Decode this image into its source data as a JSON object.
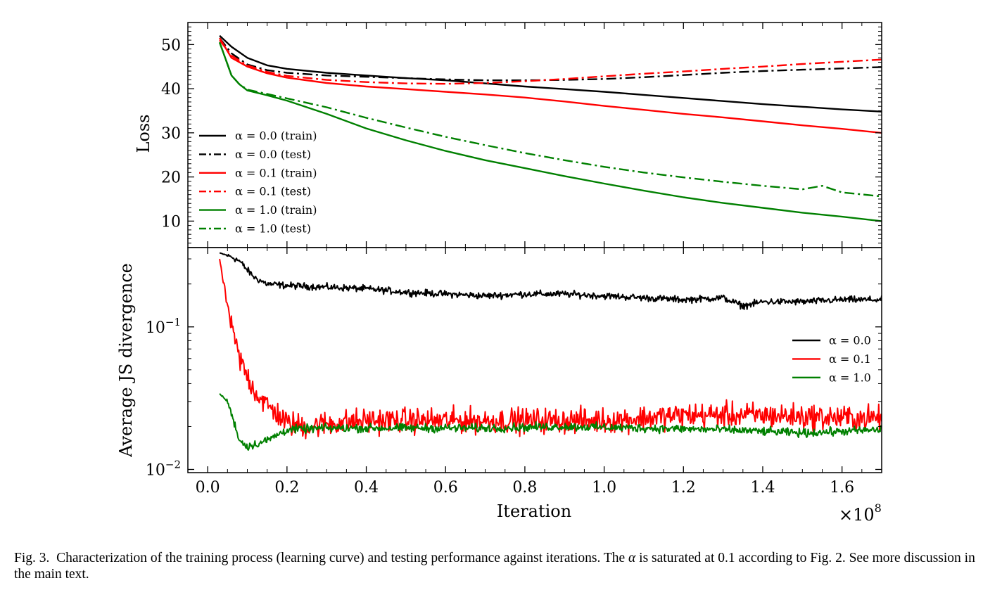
{
  "chart_data": [
    {
      "type": "line",
      "panel": "top",
      "ylabel": "Loss",
      "xlim": [
        -0.05,
        1.7
      ],
      "ylim": [
        4,
        55
      ],
      "yscale": "linear",
      "yticks": [
        10,
        20,
        30,
        40,
        50
      ],
      "ytick_labels": [
        "10",
        "20",
        "30",
        "40",
        "50"
      ],
      "legend_position": "lower-left",
      "series": [
        {
          "name": "α = 0.0 (train)",
          "color": "#000000",
          "style": "solid",
          "x": [
            0.03,
            0.06,
            0.1,
            0.15,
            0.2,
            0.3,
            0.4,
            0.5,
            0.6,
            0.7,
            0.8,
            0.9,
            1.0,
            1.1,
            1.2,
            1.3,
            1.4,
            1.5,
            1.6,
            1.7
          ],
          "y": [
            52,
            49.5,
            47,
            45.3,
            44.5,
            43.6,
            43,
            42.4,
            41.9,
            41.2,
            40.5,
            39.9,
            39.3,
            38.6,
            37.9,
            37.2,
            36.5,
            35.9,
            35.3,
            34.8
          ]
        },
        {
          "name": "α = 0.0 (test)",
          "color": "#000000",
          "style": "dashdot",
          "x": [
            0.03,
            0.06,
            0.1,
            0.15,
            0.2,
            0.3,
            0.4,
            0.5,
            0.6,
            0.7,
            0.8,
            0.9,
            1.0,
            1.1,
            1.2,
            1.3,
            1.4,
            1.5,
            1.6,
            1.7
          ],
          "y": [
            51.5,
            48,
            45.5,
            44.2,
            43.6,
            43,
            42.7,
            42.4,
            42.1,
            41.9,
            41.9,
            42,
            42.2,
            42.6,
            43.1,
            43.6,
            44,
            44.3,
            44.6,
            44.9
          ]
        },
        {
          "name": "α = 0.1 (train)",
          "color": "#ff0000",
          "style": "solid",
          "x": [
            0.03,
            0.06,
            0.1,
            0.15,
            0.2,
            0.3,
            0.4,
            0.5,
            0.6,
            0.7,
            0.8,
            0.9,
            1.0,
            1.1,
            1.2,
            1.3,
            1.4,
            1.5,
            1.6,
            1.7
          ],
          "y": [
            51.5,
            47,
            45,
            43.5,
            42.5,
            41.3,
            40.5,
            39.9,
            39.3,
            38.7,
            38,
            37.1,
            36.1,
            35.2,
            34.3,
            33.5,
            32.6,
            31.7,
            30.9,
            30
          ]
        },
        {
          "name": "α = 0.1 (test)",
          "color": "#ff0000",
          "style": "dashdot",
          "x": [
            0.03,
            0.06,
            0.1,
            0.15,
            0.2,
            0.3,
            0.4,
            0.5,
            0.6,
            0.7,
            0.8,
            0.9,
            1.0,
            1.1,
            1.2,
            1.3,
            1.4,
            1.5,
            1.6,
            1.7
          ],
          "y": [
            51,
            47.5,
            45.3,
            43.8,
            42.9,
            42,
            41.5,
            41.2,
            41.1,
            41.3,
            41.7,
            42.2,
            42.8,
            43.4,
            43.9,
            44.5,
            45,
            45.6,
            46.1,
            46.6
          ]
        },
        {
          "name": "α = 1.0 (train)",
          "color": "#008000",
          "style": "solid",
          "x": [
            0.03,
            0.06,
            0.08,
            0.1,
            0.15,
            0.2,
            0.3,
            0.4,
            0.5,
            0.6,
            0.7,
            0.8,
            0.9,
            1.0,
            1.1,
            1.2,
            1.3,
            1.4,
            1.5,
            1.6,
            1.7
          ],
          "y": [
            50.5,
            43,
            41,
            39.6,
            38.5,
            37.3,
            34.3,
            31,
            28.3,
            25.9,
            23.8,
            22,
            20.2,
            18.5,
            16.9,
            15.4,
            14.1,
            13,
            11.9,
            11,
            10
          ]
        },
        {
          "name": "α = 1.0 (test)",
          "color": "#008000",
          "style": "dashdot",
          "x": [
            0.03,
            0.06,
            0.08,
            0.1,
            0.15,
            0.2,
            0.3,
            0.4,
            0.5,
            0.6,
            0.7,
            0.8,
            0.9,
            1.0,
            1.1,
            1.2,
            1.3,
            1.4,
            1.5,
            1.55,
            1.6,
            1.7
          ],
          "y": [
            50.5,
            43,
            41,
            39.8,
            38.8,
            37.8,
            35.8,
            33.4,
            31.2,
            29.1,
            27.2,
            25.4,
            23.8,
            22.3,
            21,
            19.9,
            18.9,
            18,
            17.2,
            18,
            16.5,
            15.6
          ]
        }
      ]
    },
    {
      "type": "line",
      "panel": "bottom",
      "xlabel": "Iteration",
      "x_multiplier": "×10⁸",
      "x_multiplier_base": "×10",
      "x_multiplier_exp": "8",
      "ylabel": "Average JS divergence",
      "xlim": [
        -0.05,
        1.7
      ],
      "ylim": [
        0.0095,
        0.36
      ],
      "yscale": "log",
      "xticks": [
        0.0,
        0.2,
        0.4,
        0.6,
        0.8,
        1.0,
        1.2,
        1.4,
        1.6
      ],
      "xtick_labels": [
        "0.0",
        "0.2",
        "0.4",
        "0.6",
        "0.8",
        "1.0",
        "1.2",
        "1.4",
        "1.6"
      ],
      "yticks": [
        0.01,
        0.1
      ],
      "ytick_bases": [
        "10",
        "10"
      ],
      "ytick_exps": [
        "−2",
        "−1"
      ],
      "legend_position": "center-right",
      "series": [
        {
          "name": "α = 0.0",
          "color": "#000000",
          "trend_x": [
            0.03,
            0.06,
            0.08,
            0.1,
            0.12,
            0.15,
            0.2,
            0.3,
            0.4,
            0.5,
            0.6,
            0.7,
            0.8,
            0.9,
            1.0,
            1.1,
            1.2,
            1.3,
            1.35,
            1.4,
            1.5,
            1.6,
            1.7
          ],
          "trend_y": [
            0.33,
            0.31,
            0.29,
            0.25,
            0.22,
            0.2,
            0.195,
            0.19,
            0.185,
            0.175,
            0.17,
            0.165,
            0.17,
            0.17,
            0.165,
            0.16,
            0.155,
            0.16,
            0.14,
            0.15,
            0.15,
            0.155,
            0.155
          ],
          "noise_amplitude": 0.08
        },
        {
          "name": "α = 0.1",
          "color": "#ff0000",
          "trend_x": [
            0.03,
            0.04,
            0.06,
            0.08,
            0.1,
            0.12,
            0.15,
            0.18,
            0.2,
            0.25,
            0.3,
            0.4,
            0.5,
            0.6,
            0.8,
            1.0,
            1.2,
            1.4,
            1.6,
            1.7
          ],
          "trend_y": [
            0.3,
            0.2,
            0.1,
            0.06,
            0.045,
            0.035,
            0.028,
            0.024,
            0.021,
            0.02,
            0.021,
            0.022,
            0.022,
            0.022,
            0.022,
            0.022,
            0.024,
            0.024,
            0.023,
            0.023
          ],
          "noise_amplitude": 0.3
        },
        {
          "name": "α = 1.0",
          "color": "#008000",
          "trend_x": [
            0.03,
            0.05,
            0.07,
            0.08,
            0.1,
            0.12,
            0.15,
            0.2,
            0.3,
            0.5,
            0.7,
            0.9,
            1.1,
            1.3,
            1.5,
            1.7
          ],
          "trend_y": [
            0.034,
            0.03,
            0.02,
            0.016,
            0.0145,
            0.015,
            0.016,
            0.019,
            0.0195,
            0.0195,
            0.0195,
            0.02,
            0.0195,
            0.019,
            0.018,
            0.019
          ],
          "noise_amplitude": 0.1
        }
      ]
    }
  ],
  "caption": {
    "label": "Fig. 3.",
    "text_before_alpha": "Characterization of the training process (learning curve) and testing performance against iterations. The",
    "alpha_symbol": "α",
    "text_after_alpha": "is saturated at  0.1 according to Fig. 2. See more discussion in the main text."
  }
}
